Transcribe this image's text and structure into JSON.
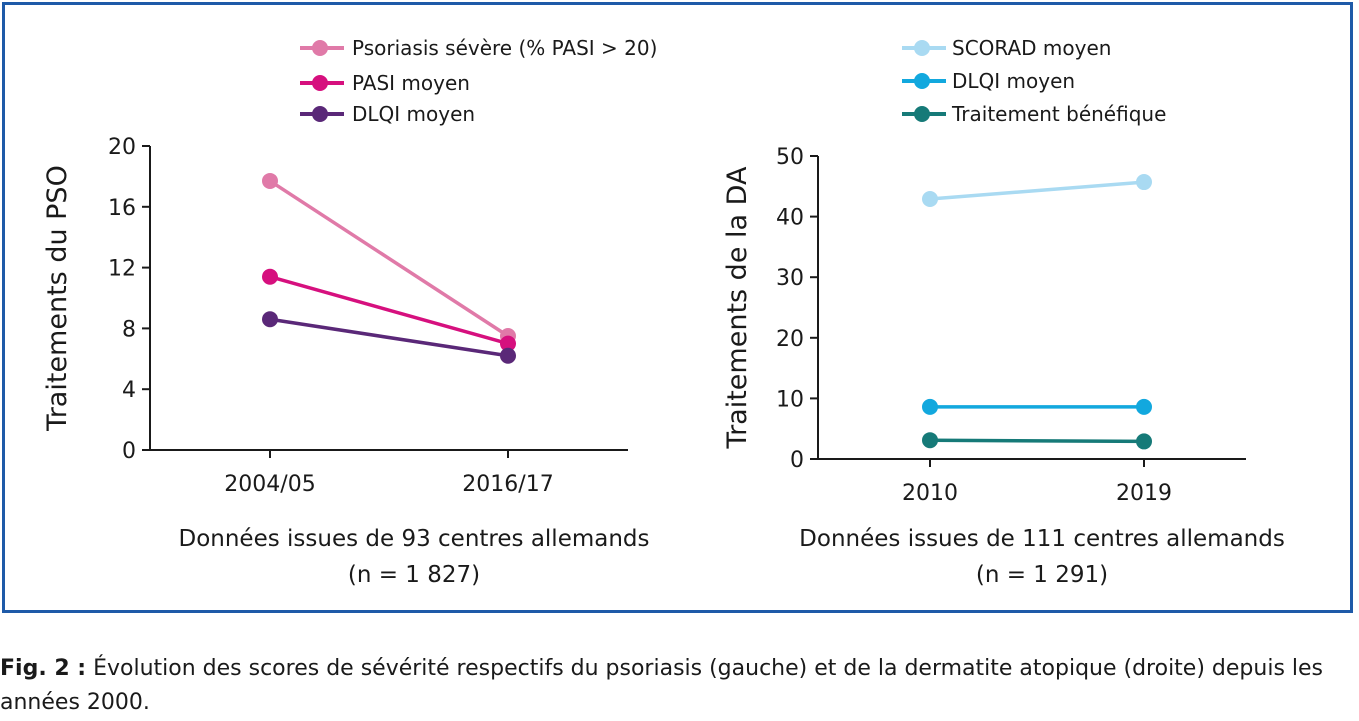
{
  "chart_data": [
    {
      "type": "line",
      "ylabel": "Traitements du PSO",
      "categories": [
        "2004/05",
        "2016/17"
      ],
      "ylim": [
        0,
        20
      ],
      "yticks": [
        "0",
        "4",
        "8",
        "12",
        "16",
        "20"
      ],
      "legend_position": "top",
      "note_line1": "Données issues de 93 centres allemands",
      "note_line2": "(n = 1 827)",
      "series": [
        {
          "name": "Psoriasis sévère (% PASI > 20)",
          "values": [
            17.7,
            7.5
          ],
          "color": "#e07aa8"
        },
        {
          "name": "PASI moyen",
          "values": [
            11.4,
            7.0
          ],
          "color": "#d6107e"
        },
        {
          "name": "DLQI moyen",
          "values": [
            8.6,
            6.2
          ],
          "color": "#5a2878"
        }
      ]
    },
    {
      "type": "line",
      "ylabel": "Traitements de la DA",
      "categories": [
        "2010",
        "2019"
      ],
      "ylim": [
        0,
        50
      ],
      "yticks": [
        "0",
        "10",
        "20",
        "30",
        "40",
        "50"
      ],
      "legend_position": "top",
      "note_line1": "Données issues de 111 centres allemands",
      "note_line2": "(n = 1 291)",
      "series": [
        {
          "name": "SCORAD moyen",
          "values": [
            42.9,
            45.7
          ],
          "color": "#a9daf2"
        },
        {
          "name": "DLQI moyen",
          "values": [
            8.6,
            8.6
          ],
          "color": "#12a8de"
        },
        {
          "name": "Traitement bénéfique",
          "values": [
            3.1,
            2.9
          ],
          "color": "#167a78"
        }
      ]
    }
  ],
  "caption": {
    "label": "Fig. 2 :",
    "text": " Évolution des scores de sévérité respectifs du psoriasis (gauche) et de la dermatite atopique (droite) depuis les années 2000."
  }
}
